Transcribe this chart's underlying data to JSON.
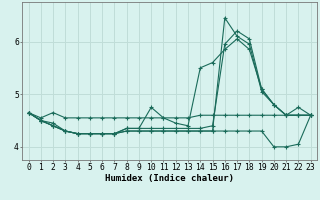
{
  "xlabel": "Humidex (Indice chaleur)",
  "background_color": "#d8f2ee",
  "grid_color": "#c0ddd8",
  "line_color": "#1a6b5a",
  "x_values": [
    0,
    1,
    2,
    3,
    4,
    5,
    6,
    7,
    8,
    9,
    10,
    11,
    12,
    13,
    14,
    15,
    16,
    17,
    18,
    19,
    20,
    21,
    22,
    23
  ],
  "series": [
    [
      4.65,
      4.55,
      4.65,
      4.55,
      4.55,
      4.55,
      4.55,
      4.55,
      4.55,
      4.55,
      4.55,
      4.55,
      4.55,
      4.55,
      4.6,
      4.6,
      4.6,
      4.6,
      4.6,
      4.6,
      4.6,
      4.6,
      4.6,
      4.6
    ],
    [
      4.65,
      4.5,
      4.45,
      4.3,
      4.25,
      4.25,
      4.25,
      4.25,
      4.35,
      4.35,
      4.75,
      4.55,
      4.45,
      4.4,
      5.5,
      5.6,
      5.85,
      6.05,
      5.85,
      5.1,
      4.8,
      4.6,
      4.6,
      4.6
    ],
    [
      4.65,
      4.5,
      4.4,
      4.3,
      4.25,
      4.25,
      4.25,
      4.25,
      4.35,
      4.35,
      4.35,
      4.35,
      4.35,
      4.35,
      4.35,
      4.4,
      5.95,
      6.2,
      6.05,
      5.1,
      4.8,
      4.6,
      4.6,
      4.6
    ],
    [
      4.65,
      4.5,
      4.4,
      4.3,
      4.25,
      4.25,
      4.25,
      4.25,
      4.3,
      4.3,
      4.3,
      4.3,
      4.3,
      4.3,
      4.3,
      4.3,
      6.45,
      6.1,
      5.95,
      5.05,
      4.8,
      4.6,
      4.75,
      4.6
    ],
    [
      4.65,
      4.5,
      4.4,
      4.3,
      4.25,
      4.25,
      4.25,
      4.25,
      4.3,
      4.3,
      4.3,
      4.3,
      4.3,
      4.3,
      4.3,
      4.3,
      4.3,
      4.3,
      4.3,
      4.3,
      4.0,
      4.0,
      4.05,
      4.6
    ]
  ],
  "ylim": [
    3.75,
    6.75
  ],
  "xlim": [
    -0.5,
    23.5
  ],
  "yticks": [
    4,
    5,
    6
  ],
  "xticks": [
    0,
    1,
    2,
    3,
    4,
    5,
    6,
    7,
    8,
    9,
    10,
    11,
    12,
    13,
    14,
    15,
    16,
    17,
    18,
    19,
    20,
    21,
    22,
    23
  ],
  "xlabel_fontsize": 6.5,
  "tick_fontsize": 5.8
}
